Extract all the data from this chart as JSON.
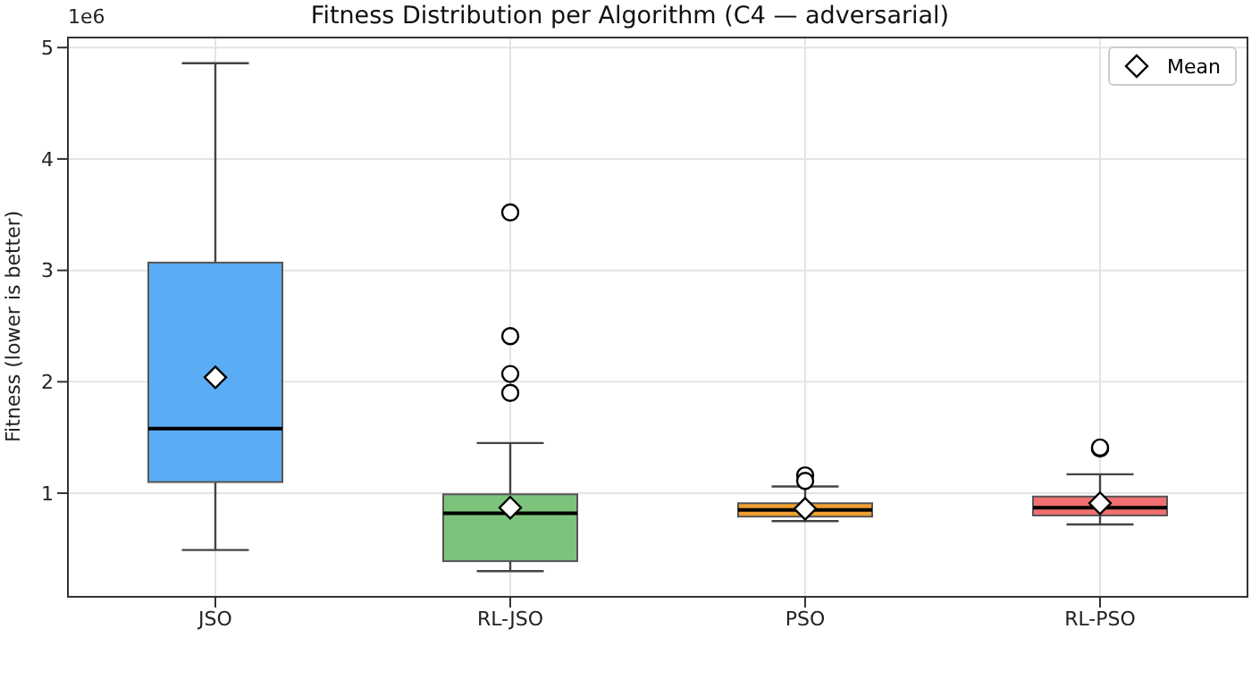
{
  "chart_data": {
    "type": "box",
    "title": "Fitness Distribution per Algorithm (C4 — adversarial)",
    "ylabel": "Fitness (lower is better)",
    "annotations": [
      "1e6"
    ],
    "categories": [
      "JSO",
      "RL-JSO",
      "PSO",
      "RL-PSO"
    ],
    "colors": [
      "#5aadf5",
      "#7cc47c",
      "#f0a030",
      "#f07070"
    ],
    "boxes": [
      {
        "low": 0.49,
        "q1": 1.1,
        "median": 1.58,
        "q3": 3.07,
        "high": 4.86
      },
      {
        "low": 0.3,
        "q1": 0.39,
        "median": 0.82,
        "q3": 0.99,
        "high": 1.45,
        "outliers": [
          3.52,
          2.41,
          2.07,
          1.9
        ]
      },
      {
        "low": 0.75,
        "q1": 0.79,
        "median": 0.85,
        "q3": 0.91,
        "high": 1.06,
        "outliers": [
          1.16,
          1.11
        ]
      },
      {
        "low": 0.72,
        "q1": 0.8,
        "median": 0.87,
        "q3": 0.97,
        "high": 1.17,
        "outliers": [
          1.4,
          1.41
        ]
      }
    ],
    "series": [
      {
        "name": "Mean",
        "type": "scatter",
        "marker": "diamond",
        "color": "#ffffff",
        "values": [
          2.04,
          0.87,
          0.86,
          0.91
        ]
      }
    ],
    "ylim": [
      0.07,
      5.09
    ],
    "yticks": [
      1,
      2,
      3,
      4,
      5
    ],
    "grid": true,
    "legend": "top right"
  }
}
